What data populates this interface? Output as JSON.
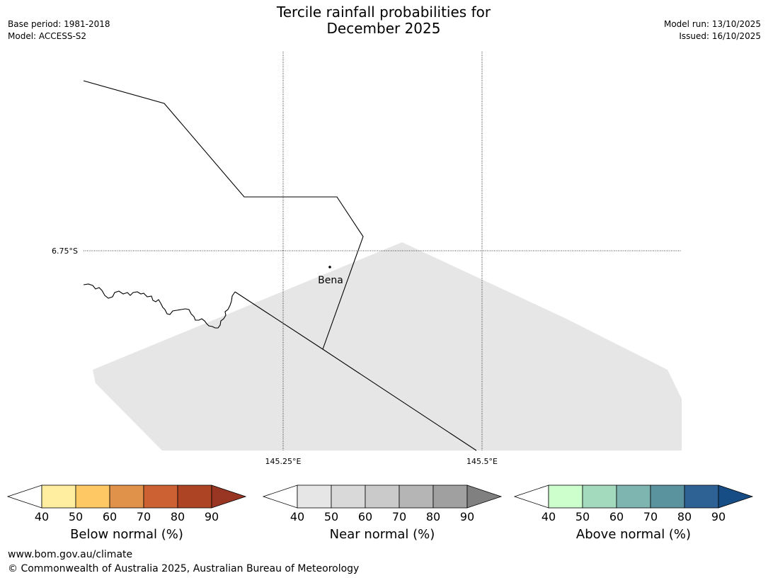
{
  "title_line1": "Tercile rainfall probabilities for",
  "title_line2": "December 2025",
  "base_period": "Base period: 1981-2018",
  "model": "Model: ACCESS-S2",
  "model_run": "Model run: 13/10/2025",
  "issued": "Issued: 16/10/2025",
  "map": {
    "lat_label": "6.75°S",
    "lon_labels": [
      "145.25°E",
      "145.5°E"
    ],
    "place": "Bena",
    "shading_color": "#e6e6e6"
  },
  "colorbars": [
    {
      "title": "Below normal (%)",
      "ticks": [
        "40",
        "50",
        "60",
        "70",
        "80",
        "90"
      ],
      "colors": [
        "#ffeda0",
        "#fec965",
        "#e0914a",
        "#cc6133",
        "#ad4524",
        "#983523"
      ]
    },
    {
      "title": "Near normal (%)",
      "ticks": [
        "40",
        "50",
        "60",
        "70",
        "80",
        "90"
      ],
      "colors": [
        "#e6e6e6",
        "#d9d9d9",
        "#cacaca",
        "#b5b5b5",
        "#a0a0a0",
        "#808080"
      ]
    },
    {
      "title": "Above normal (%)",
      "ticks": [
        "40",
        "50",
        "60",
        "70",
        "80",
        "90"
      ],
      "colors": [
        "#ccffcc",
        "#a3d9bc",
        "#7fb5b0",
        "#5a939d",
        "#2f6294",
        "#174d85"
      ]
    }
  ],
  "footer": {
    "url": "www.bom.gov.au/climate",
    "copyright": "© Commonwealth of Australia 2025, Australian Bureau of Meteorology"
  }
}
